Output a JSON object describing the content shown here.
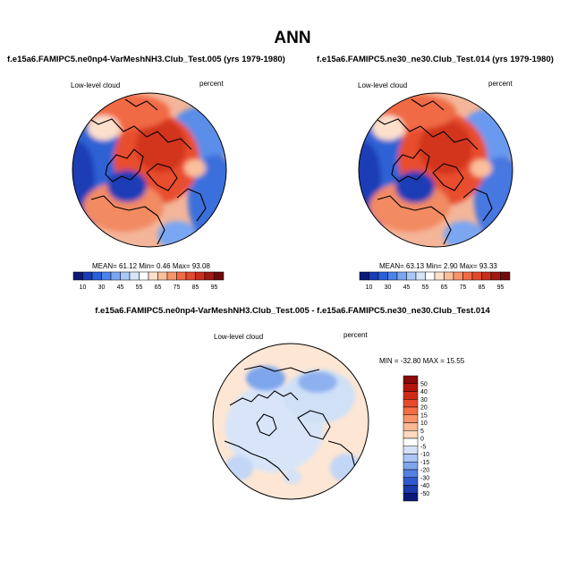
{
  "figure": {
    "title": "ANN"
  },
  "panels": [
    {
      "title": "f.e15a6.FAMIPC5.ne0np4-VarMeshNH3.Club_Test.005 (yrs 1979-1980)",
      "variable": "Low-level cloud",
      "units": "percent",
      "stats": {
        "mean": "61.12",
        "min": "0.46",
        "max": "93.08"
      },
      "stats_text": "MEAN=  61.12  Min=   0.46  Max=   93.08",
      "colorbar": {
        "tick_labels": [
          "10",
          "30",
          "45",
          "55",
          "65",
          "75",
          "85",
          "95"
        ],
        "colors": [
          "#0a1a78",
          "#1a3cb5",
          "#2a5fd8",
          "#4c82ea",
          "#7aa6f2",
          "#a9c8f7",
          "#d6e5fa",
          "#ffffff",
          "#fde0cc",
          "#fbbf9b",
          "#f7946a",
          "#f06a44",
          "#e24a2c",
          "#c82e1e",
          "#a01812",
          "#700a0a"
        ]
      }
    },
    {
      "title": "f.e15a6.FAMIPC5.ne30_ne30.Club_Test.014 (yrs 1979-1980)",
      "variable": "Low-level cloud",
      "units": "percent",
      "stats": {
        "mean": "63.13",
        "min": "2.90",
        "max": "93.33"
      },
      "stats_text": "MEAN=  63.13  Min=   2.90  Max=   93.33",
      "colorbar": {
        "tick_labels": [
          "10",
          "30",
          "45",
          "55",
          "65",
          "75",
          "85",
          "95"
        ],
        "colors": [
          "#0a1a78",
          "#1a3cb5",
          "#2a5fd8",
          "#4c82ea",
          "#7aa6f2",
          "#a9c8f7",
          "#d6e5fa",
          "#ffffff",
          "#fde0cc",
          "#fbbf9b",
          "#f7946a",
          "#f06a44",
          "#e24a2c",
          "#c82e1e",
          "#a01812",
          "#700a0a"
        ]
      }
    },
    {
      "title": "f.e15a6.FAMIPC5.ne0np4-VarMeshNH3.Club_Test.005 - f.e15a6.FAMIPC5.ne30_ne30.Club_Test.014",
      "variable": "Low-level cloud",
      "units": "percent",
      "stats": {
        "min": "-32.80",
        "max": "15.55"
      },
      "stats_text": "MIN = -32.80 MAX =  15.55",
      "colorbar": {
        "tick_labels": [
          "50",
          "40",
          "30",
          "20",
          "15",
          "10",
          "5",
          "0",
          "-5",
          "-10",
          "-15",
          "-20",
          "-30",
          "-40",
          "-50"
        ],
        "colors": [
          "#8b0a0a",
          "#b3160f",
          "#d22a1a",
          "#e84a2c",
          "#f46d45",
          "#f8956a",
          "#fbb894",
          "#fdd9c0",
          "#ffffff",
          "#d4e2f8",
          "#aac6f3",
          "#7ea6ec",
          "#557fe0",
          "#2e58cc",
          "#1a38a8",
          "#0a1a78"
        ]
      }
    }
  ]
}
